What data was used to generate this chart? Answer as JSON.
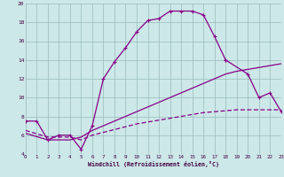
{
  "background_color": "#cce8e8",
  "line_color": "#880088",
  "grid_color": "#99bbbb",
  "xlim": [
    0,
    23
  ],
  "ylim": [
    4,
    20
  ],
  "xtick_vals": [
    0,
    1,
    2,
    3,
    4,
    5,
    6,
    7,
    8,
    9,
    10,
    11,
    12,
    13,
    14,
    15,
    16,
    17,
    18,
    19,
    20,
    21,
    22,
    23
  ],
  "ytick_vals": [
    4,
    6,
    8,
    10,
    12,
    14,
    16,
    18,
    20
  ],
  "xlabel": "Windchill (Refroidissement éolien,°C)",
  "curve1_x": [
    0,
    1,
    2,
    3,
    4,
    5,
    6,
    7,
    8,
    9,
    10,
    11,
    12,
    13,
    14,
    15,
    16,
    17,
    18
  ],
  "curve1_y": [
    7.5,
    7.5,
    5.5,
    6.0,
    6.0,
    4.5,
    7.0,
    12.0,
    13.8,
    15.3,
    17.0,
    18.2,
    18.4,
    19.2,
    19.2,
    19.2,
    18.8,
    16.5,
    14.0
  ],
  "curve2_x": [
    18,
    20,
    21,
    22,
    23
  ],
  "curve2_y": [
    14.0,
    12.5,
    10.0,
    10.5,
    8.5
  ],
  "curve3_x": [
    0,
    2,
    3,
    4,
    5,
    6,
    7,
    8,
    9,
    10,
    11,
    12,
    13,
    14,
    15,
    16,
    17,
    18,
    19,
    20,
    21,
    22,
    23
  ],
  "curve3_y": [
    6.2,
    5.5,
    5.5,
    5.5,
    5.8,
    6.5,
    7.0,
    7.5,
    8.0,
    8.5,
    9.0,
    9.5,
    10.0,
    10.5,
    11.0,
    11.5,
    12.0,
    12.5,
    12.8,
    13.0,
    13.2,
    13.4,
    13.6
  ],
  "curve4_x": [
    0,
    2,
    3,
    4,
    5,
    6,
    7,
    8,
    9,
    10,
    11,
    12,
    13,
    14,
    15,
    16,
    17,
    18,
    19,
    20,
    21,
    22,
    23
  ],
  "curve4_y": [
    6.5,
    5.8,
    5.8,
    5.8,
    5.5,
    6.0,
    6.3,
    6.6,
    6.9,
    7.2,
    7.4,
    7.6,
    7.8,
    8.0,
    8.2,
    8.4,
    8.5,
    8.6,
    8.7,
    8.7,
    8.7,
    8.7,
    8.7
  ]
}
